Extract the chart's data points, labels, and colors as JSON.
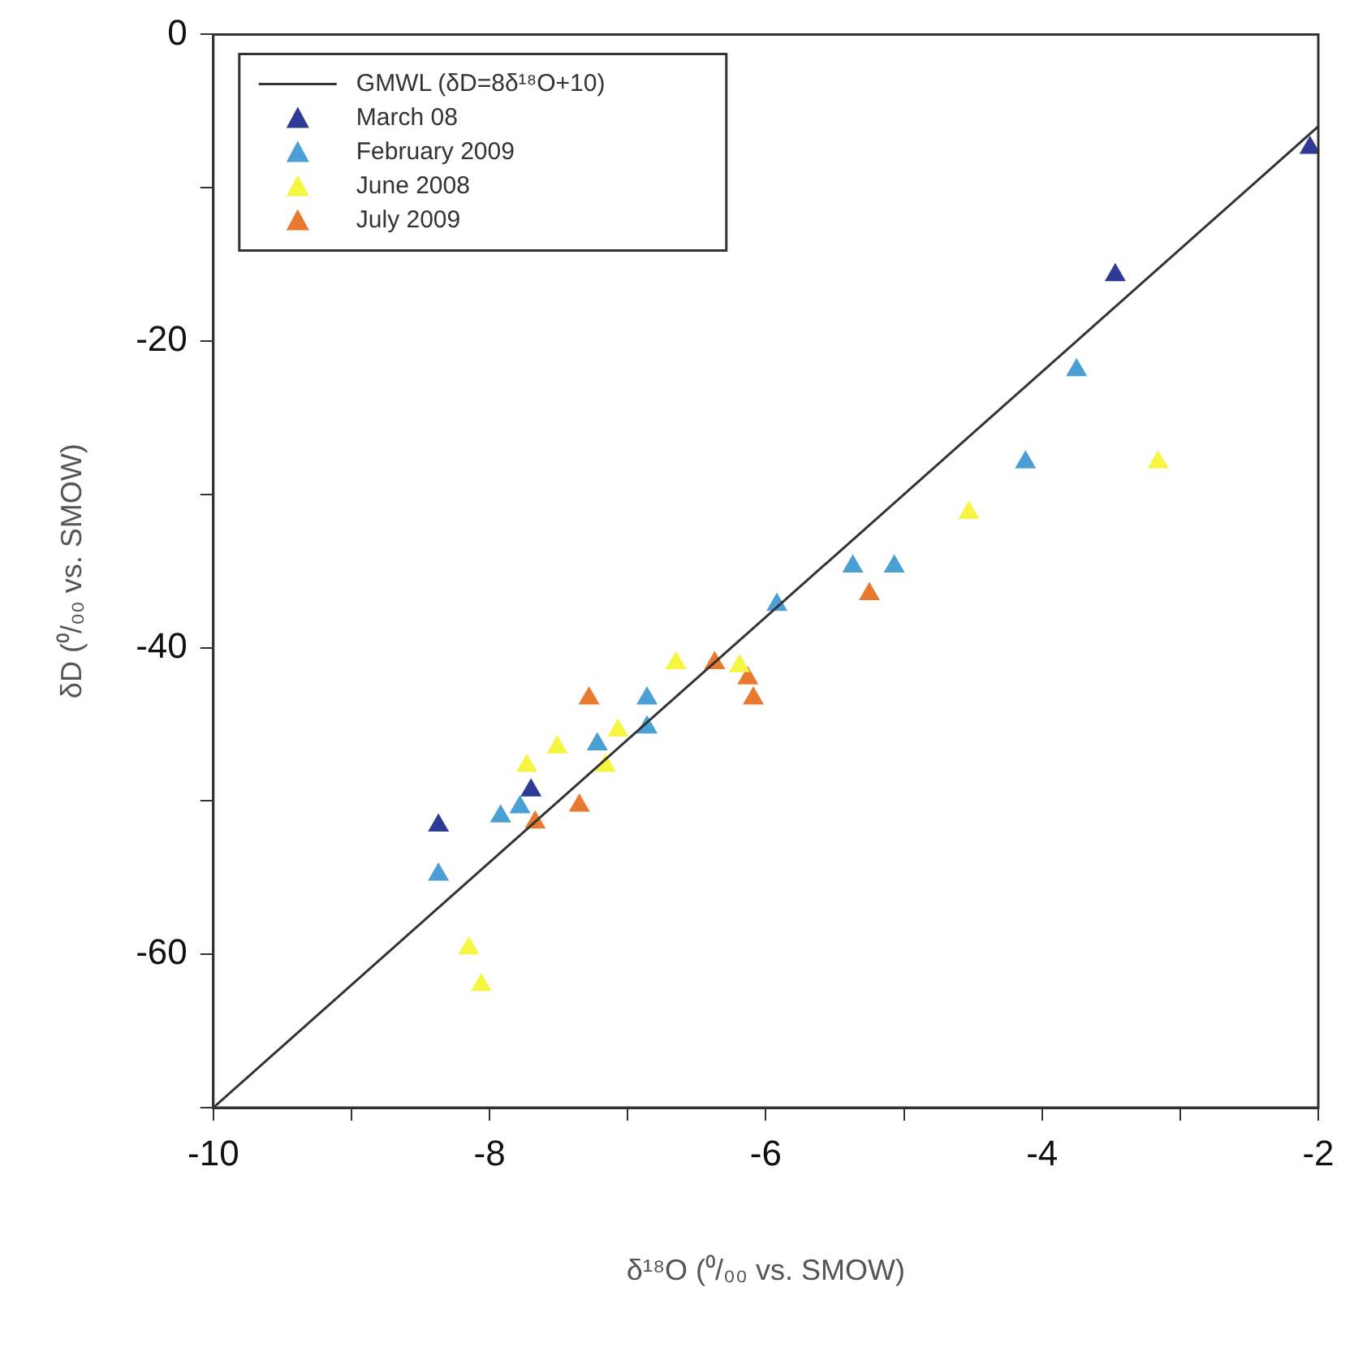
{
  "chart_data": {
    "type": "scatter",
    "xlabel": "δ¹⁸O (⁰/₀₀ vs. SMOW)",
    "ylabel": "δD (⁰/₀₀ vs. SMOW)",
    "xlim": [
      -10,
      -2
    ],
    "xticks": [
      -10,
      {
        "value": -9,
        "label": null
      },
      -8,
      {
        "value": -7,
        "label": null
      },
      -6,
      {
        "value": -5,
        "label": null
      },
      -4,
      {
        "value": -3,
        "label": null
      },
      -2
    ],
    "ylim": [
      -70,
      0
    ],
    "yticks": [
      {
        "value": -70,
        "label": null
      },
      -60,
      {
        "value": -50,
        "label": null
      },
      -40,
      {
        "value": -30,
        "label": null
      },
      -20,
      {
        "value": -10,
        "label": null
      },
      0
    ],
    "grid": false,
    "legend": "top left",
    "marker": "triangle",
    "series": [
      {
        "type": "line",
        "name": "GMWL (δD=8δ¹⁸O+10)",
        "color": "#333333",
        "x": [
          -10,
          -2
        ],
        "values": [
          -70,
          -6
        ],
        "marker": "none",
        "line_style": "solid"
      },
      {
        "name": "March 08",
        "color": "#2e3a94",
        "x": [
          -2.06,
          -3.47,
          -7.7,
          -8.37
        ],
        "values": [
          -7.4,
          -15.7,
          -49.3,
          -51.6
        ]
      },
      {
        "name": "February 2009",
        "color": "#4a9fd4",
        "x": [
          -3.75,
          -4.12,
          -5.37,
          -5.07,
          -5.92,
          -6.86,
          -6.86,
          -7.22,
          -7.78,
          -7.92,
          -8.37
        ],
        "values": [
          -21.9,
          -27.9,
          -34.7,
          -34.7,
          -37.2,
          -43.3,
          -45.2,
          -46.3,
          -50.4,
          -51.0,
          -54.8
        ]
      },
      {
        "name": "June 2008",
        "color": "#f5f542",
        "x": [
          -3.16,
          -4.53,
          -6.65,
          -6.19,
          -7.07,
          -7.51,
          -7.16,
          -7.73,
          -8.15,
          -8.06
        ],
        "values": [
          -27.9,
          -31.2,
          -41.0,
          -41.2,
          -45.4,
          -46.5,
          -47.7,
          -47.7,
          -59.6,
          -62.0
        ]
      },
      {
        "name": "July 2009",
        "color": "#e87a30",
        "x": [
          -5.25,
          -6.37,
          -6.13,
          -6.09,
          -7.28,
          -7.35,
          -7.67
        ],
        "values": [
          -36.5,
          -41.0,
          -42.0,
          -43.3,
          -43.3,
          -50.3,
          -51.4
        ]
      }
    ]
  }
}
